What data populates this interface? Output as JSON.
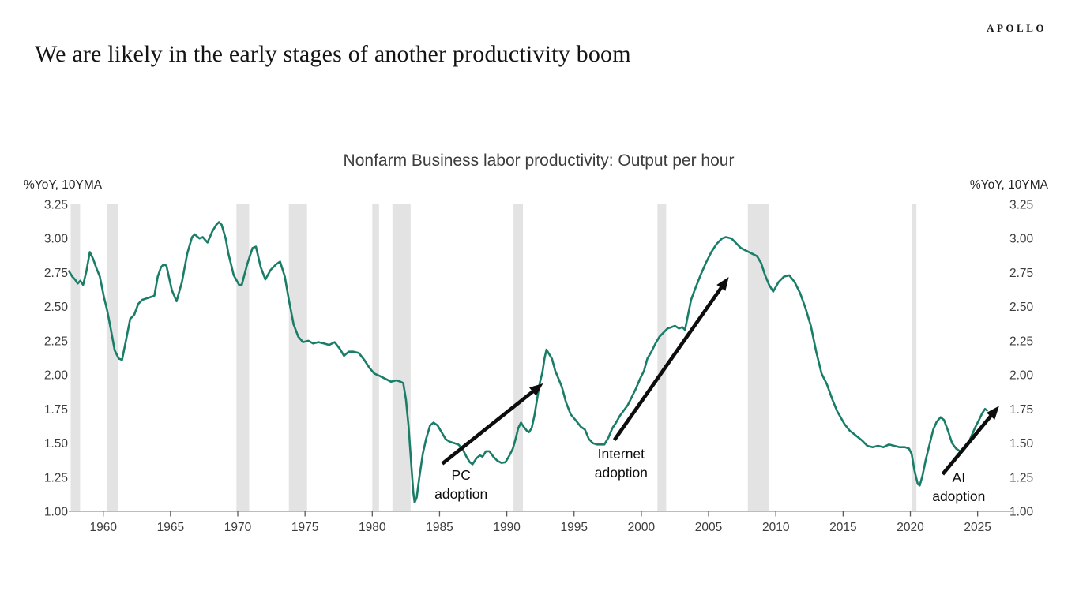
{
  "brand": {
    "logo": "APOLLO"
  },
  "headline": "We are likely in the early stages of another productivity boom",
  "chart_data": {
    "type": "line",
    "title": "Nonfarm Business labor productivity: Output per hour",
    "unit_label_left": "%YoY, 10YMA",
    "unit_label_right": "%YoY, 10YMA",
    "ylim": [
      1.0,
      3.25
    ],
    "y_ticks": [
      3.25,
      3.0,
      2.75,
      2.5,
      2.25,
      2.0,
      1.75,
      1.5,
      1.25,
      1.0
    ],
    "x_ticks": [
      1960,
      1965,
      1970,
      1975,
      1980,
      1985,
      1990,
      1995,
      2000,
      2005,
      2010,
      2015,
      2020,
      2025
    ],
    "xlim": [
      1957.4,
      2027.6
    ],
    "grid": false,
    "legend": "none",
    "line_color": "#1a7d68",
    "band_color": "#e3e3e3",
    "axis_color": "#a6a6a6",
    "tick_color": "#595959",
    "annotation_color": "#0d0d0d",
    "recession_bands": [
      [
        1957.58,
        1958.28
      ],
      [
        1960.25,
        1961.1
      ],
      [
        1969.9,
        1970.85
      ],
      [
        1973.8,
        1975.15
      ],
      [
        1980.0,
        1980.5
      ],
      [
        1981.5,
        1982.85
      ],
      [
        1990.5,
        1991.2
      ],
      [
        2001.2,
        2001.85
      ],
      [
        2007.92,
        2009.5
      ],
      [
        2020.1,
        2020.45
      ]
    ],
    "series": [
      {
        "name": "Output per hour, %YoY, 10-year moving average",
        "points": [
          [
            1957.45,
            2.76
          ],
          [
            1957.7,
            2.72
          ],
          [
            1957.9,
            2.7
          ],
          [
            1958.1,
            2.67
          ],
          [
            1958.3,
            2.69
          ],
          [
            1958.5,
            2.66
          ],
          [
            1958.75,
            2.76
          ],
          [
            1959.0,
            2.9
          ],
          [
            1959.25,
            2.85
          ],
          [
            1959.5,
            2.78
          ],
          [
            1959.75,
            2.72
          ],
          [
            1960.05,
            2.57
          ],
          [
            1960.3,
            2.47
          ],
          [
            1960.55,
            2.34
          ],
          [
            1960.85,
            2.18
          ],
          [
            1961.15,
            2.12
          ],
          [
            1961.4,
            2.11
          ],
          [
            1961.7,
            2.26
          ],
          [
            1962.0,
            2.41
          ],
          [
            1962.3,
            2.44
          ],
          [
            1962.6,
            2.52
          ],
          [
            1962.9,
            2.55
          ],
          [
            1963.2,
            2.56
          ],
          [
            1963.5,
            2.57
          ],
          [
            1963.8,
            2.58
          ],
          [
            1964.05,
            2.72
          ],
          [
            1964.3,
            2.79
          ],
          [
            1964.5,
            2.81
          ],
          [
            1964.7,
            2.8
          ],
          [
            1965.1,
            2.62
          ],
          [
            1965.45,
            2.54
          ],
          [
            1965.85,
            2.68
          ],
          [
            1966.25,
            2.89
          ],
          [
            1966.6,
            3.01
          ],
          [
            1966.8,
            3.03
          ],
          [
            1967.15,
            3.0
          ],
          [
            1967.4,
            3.01
          ],
          [
            1967.75,
            2.97
          ],
          [
            1968.1,
            3.05
          ],
          [
            1968.4,
            3.1
          ],
          [
            1968.6,
            3.12
          ],
          [
            1968.8,
            3.1
          ],
          [
            1969.1,
            3.0
          ],
          [
            1969.3,
            2.89
          ],
          [
            1969.7,
            2.73
          ],
          [
            1970.1,
            2.66
          ],
          [
            1970.3,
            2.66
          ],
          [
            1970.7,
            2.81
          ],
          [
            1971.1,
            2.93
          ],
          [
            1971.35,
            2.94
          ],
          [
            1971.7,
            2.79
          ],
          [
            1972.05,
            2.7
          ],
          [
            1972.45,
            2.77
          ],
          [
            1972.85,
            2.81
          ],
          [
            1973.15,
            2.83
          ],
          [
            1973.5,
            2.72
          ],
          [
            1973.8,
            2.55
          ],
          [
            1974.15,
            2.37
          ],
          [
            1974.5,
            2.28
          ],
          [
            1974.85,
            2.24
          ],
          [
            1975.25,
            2.25
          ],
          [
            1975.6,
            2.23
          ],
          [
            1976.0,
            2.24
          ],
          [
            1976.4,
            2.23
          ],
          [
            1976.8,
            2.22
          ],
          [
            1977.2,
            2.24
          ],
          [
            1977.6,
            2.19
          ],
          [
            1977.9,
            2.14
          ],
          [
            1978.25,
            2.17
          ],
          [
            1978.6,
            2.17
          ],
          [
            1979.0,
            2.16
          ],
          [
            1979.4,
            2.11
          ],
          [
            1979.8,
            2.05
          ],
          [
            1980.15,
            2.01
          ],
          [
            1980.6,
            1.99
          ],
          [
            1981.0,
            1.97
          ],
          [
            1981.4,
            1.95
          ],
          [
            1981.8,
            1.96
          ],
          [
            1982.1,
            1.95
          ],
          [
            1982.3,
            1.94
          ],
          [
            1982.5,
            1.82
          ],
          [
            1982.7,
            1.62
          ],
          [
            1982.9,
            1.34
          ],
          [
            1983.05,
            1.14
          ],
          [
            1983.15,
            1.065
          ],
          [
            1983.3,
            1.1
          ],
          [
            1983.5,
            1.25
          ],
          [
            1983.75,
            1.42
          ],
          [
            1984.0,
            1.53
          ],
          [
            1984.3,
            1.63
          ],
          [
            1984.55,
            1.65
          ],
          [
            1984.85,
            1.63
          ],
          [
            1985.15,
            1.58
          ],
          [
            1985.45,
            1.53
          ],
          [
            1985.75,
            1.51
          ],
          [
            1986.1,
            1.5
          ],
          [
            1986.4,
            1.49
          ],
          [
            1986.7,
            1.46
          ],
          [
            1987.0,
            1.4
          ],
          [
            1987.25,
            1.36
          ],
          [
            1987.45,
            1.345
          ],
          [
            1987.75,
            1.39
          ],
          [
            1988.0,
            1.41
          ],
          [
            1988.2,
            1.4
          ],
          [
            1988.45,
            1.44
          ],
          [
            1988.7,
            1.44
          ],
          [
            1989.0,
            1.4
          ],
          [
            1989.3,
            1.37
          ],
          [
            1989.6,
            1.355
          ],
          [
            1989.9,
            1.36
          ],
          [
            1990.2,
            1.41
          ],
          [
            1990.45,
            1.46
          ],
          [
            1990.65,
            1.53
          ],
          [
            1990.85,
            1.61
          ],
          [
            1991.05,
            1.65
          ],
          [
            1991.25,
            1.62
          ],
          [
            1991.5,
            1.59
          ],
          [
            1991.65,
            1.58
          ],
          [
            1991.85,
            1.61
          ],
          [
            1992.05,
            1.7
          ],
          [
            1992.25,
            1.82
          ],
          [
            1992.45,
            1.94
          ],
          [
            1992.65,
            2.02
          ],
          [
            1992.8,
            2.12
          ],
          [
            1992.95,
            2.185
          ],
          [
            1993.1,
            2.16
          ],
          [
            1993.35,
            2.12
          ],
          [
            1993.6,
            2.03
          ],
          [
            1993.85,
            1.97
          ],
          [
            1994.1,
            1.91
          ],
          [
            1994.4,
            1.8
          ],
          [
            1994.75,
            1.71
          ],
          [
            1995.1,
            1.67
          ],
          [
            1995.5,
            1.62
          ],
          [
            1995.8,
            1.6
          ],
          [
            1996.1,
            1.53
          ],
          [
            1996.4,
            1.5
          ],
          [
            1996.7,
            1.49
          ],
          [
            1997.0,
            1.49
          ],
          [
            1997.25,
            1.49
          ],
          [
            1997.55,
            1.54
          ],
          [
            1997.85,
            1.61
          ],
          [
            1998.12,
            1.65
          ],
          [
            1998.4,
            1.7
          ],
          [
            1998.7,
            1.74
          ],
          [
            1999.0,
            1.78
          ],
          [
            1999.3,
            1.84
          ],
          [
            1999.6,
            1.9
          ],
          [
            1999.9,
            1.97
          ],
          [
            2000.2,
            2.03
          ],
          [
            2000.45,
            2.12
          ],
          [
            2000.75,
            2.17
          ],
          [
            2001.05,
            2.23
          ],
          [
            2001.35,
            2.28
          ],
          [
            2001.65,
            2.31
          ],
          [
            2001.95,
            2.34
          ],
          [
            2002.25,
            2.35
          ],
          [
            2002.5,
            2.36
          ],
          [
            2002.8,
            2.34
          ],
          [
            2003.05,
            2.35
          ],
          [
            2003.25,
            2.33
          ],
          [
            2003.45,
            2.43
          ],
          [
            2003.7,
            2.55
          ],
          [
            2004.0,
            2.63
          ],
          [
            2004.4,
            2.73
          ],
          [
            2004.8,
            2.82
          ],
          [
            2005.2,
            2.9
          ],
          [
            2005.6,
            2.96
          ],
          [
            2006.0,
            3.0
          ],
          [
            2006.3,
            3.01
          ],
          [
            2006.7,
            3.0
          ],
          [
            2007.1,
            2.96
          ],
          [
            2007.4,
            2.93
          ],
          [
            2007.8,
            2.91
          ],
          [
            2008.2,
            2.89
          ],
          [
            2008.6,
            2.87
          ],
          [
            2008.9,
            2.82
          ],
          [
            2009.2,
            2.73
          ],
          [
            2009.5,
            2.66
          ],
          [
            2009.8,
            2.61
          ],
          [
            2010.2,
            2.68
          ],
          [
            2010.6,
            2.72
          ],
          [
            2011.0,
            2.73
          ],
          [
            2011.4,
            2.68
          ],
          [
            2011.8,
            2.6
          ],
          [
            2012.2,
            2.49
          ],
          [
            2012.6,
            2.36
          ],
          [
            2013.0,
            2.17
          ],
          [
            2013.4,
            2.01
          ],
          [
            2013.8,
            1.93
          ],
          [
            2014.2,
            1.82
          ],
          [
            2014.55,
            1.735
          ],
          [
            2015.1,
            1.64
          ],
          [
            2015.5,
            1.59
          ],
          [
            2015.9,
            1.56
          ],
          [
            2016.4,
            1.52
          ],
          [
            2016.8,
            1.48
          ],
          [
            2017.2,
            1.47
          ],
          [
            2017.6,
            1.48
          ],
          [
            2018.0,
            1.47
          ],
          [
            2018.4,
            1.49
          ],
          [
            2018.8,
            1.48
          ],
          [
            2019.2,
            1.47
          ],
          [
            2019.6,
            1.47
          ],
          [
            2019.9,
            1.46
          ],
          [
            2020.1,
            1.42
          ],
          [
            2020.3,
            1.3
          ],
          [
            2020.55,
            1.2
          ],
          [
            2020.7,
            1.19
          ],
          [
            2020.9,
            1.26
          ],
          [
            2021.15,
            1.38
          ],
          [
            2021.45,
            1.5
          ],
          [
            2021.7,
            1.6
          ],
          [
            2021.95,
            1.655
          ],
          [
            2022.25,
            1.69
          ],
          [
            2022.5,
            1.67
          ],
          [
            2022.8,
            1.59
          ],
          [
            2023.1,
            1.5
          ],
          [
            2023.4,
            1.46
          ],
          [
            2023.7,
            1.44
          ],
          [
            2024.0,
            1.47
          ],
          [
            2024.4,
            1.52
          ],
          [
            2024.8,
            1.61
          ],
          [
            2025.1,
            1.67
          ],
          [
            2025.35,
            1.72
          ],
          [
            2025.55,
            1.75
          ],
          [
            2025.7,
            1.74
          ]
        ]
      }
    ],
    "annotations": [
      {
        "lines": [
          "PC",
          "adoption"
        ],
        "year": 1986.6,
        "value": 1.266,
        "arrow_from": [
          1985.2,
          1.349
        ],
        "arrow_to": [
          1992.7,
          1.938
        ]
      },
      {
        "lines": [
          "Internet",
          "adoption"
        ],
        "year": 1998.5,
        "value": 1.422,
        "arrow_from": [
          1998.0,
          1.523
        ],
        "arrow_to": [
          2006.5,
          2.718
        ]
      },
      {
        "lines": [
          "AI",
          "adoption"
        ],
        "year": 2023.6,
        "value": 1.249,
        "arrow_from": [
          2022.4,
          1.272
        ],
        "arrow_to": [
          2026.6,
          1.773
        ]
      }
    ]
  }
}
